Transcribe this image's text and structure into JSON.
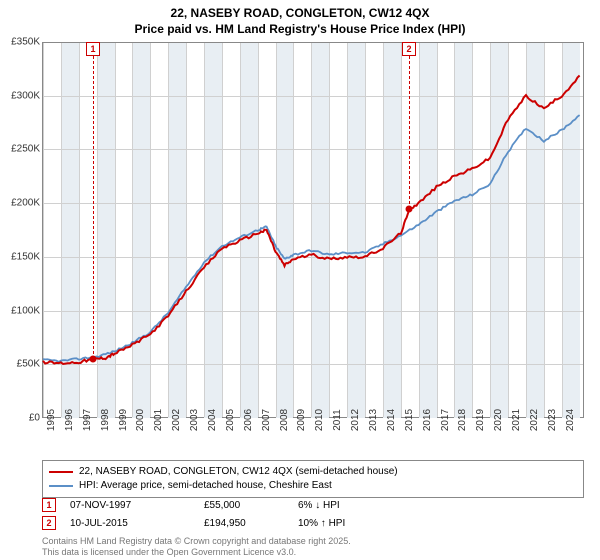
{
  "title_line1": "22, NASEBY ROAD, CONGLETON, CW12 4QX",
  "title_line2": "Price paid vs. HM Land Registry's House Price Index (HPI)",
  "chart": {
    "type": "line",
    "background_color": "#ffffff",
    "shade_color": "#e8eef3",
    "grid_color": "#d0d0d0",
    "border_color": "#888888",
    "ylim": [
      0,
      350000
    ],
    "ytick_step": 50000,
    "ytick_labels": [
      "£0",
      "£50K",
      "£100K",
      "£150K",
      "£200K",
      "£250K",
      "£300K",
      "£350K"
    ],
    "x_years": [
      1995,
      1996,
      1997,
      1998,
      1999,
      2000,
      2001,
      2002,
      2003,
      2004,
      2005,
      2006,
      2007,
      2008,
      2009,
      2010,
      2011,
      2012,
      2013,
      2014,
      2015,
      2016,
      2017,
      2018,
      2019,
      2020,
      2021,
      2022,
      2023,
      2024
    ],
    "series": [
      {
        "name": "price_paid",
        "label": "22, NASEBY ROAD, CONGLETON, CW12 4QX (semi-detached house)",
        "color": "#cc0000",
        "line_width": 2,
        "x": [
          1995,
          1996,
          1997,
          1997.85,
          1998.5,
          1999,
          2000,
          2001,
          2002,
          2003,
          2004,
          2005,
          2006,
          2007,
          2007.5,
          2008,
          2008.5,
          2009,
          2010,
          2011,
          2012,
          2013,
          2014,
          2015,
          2015.52,
          2016,
          2017,
          2018,
          2019,
          2020,
          2021,
          2022,
          2023,
          2024,
          2025
        ],
        "y": [
          52000,
          51000,
          52000,
          55000,
          56000,
          60000,
          68000,
          78000,
          95000,
          118000,
          140000,
          158000,
          165000,
          172000,
          175000,
          155000,
          142000,
          148000,
          152000,
          148000,
          150000,
          150000,
          158000,
          172000,
          194950,
          200000,
          215000,
          225000,
          232000,
          242000,
          278000,
          300000,
          288000,
          300000,
          318000
        ]
      },
      {
        "name": "hpi",
        "label": "HPI: Average price, semi-detached house, Cheshire East",
        "color": "#5b8fc7",
        "line_width": 1.8,
        "x": [
          1995,
          1996,
          1997,
          1998,
          1999,
          2000,
          2001,
          2002,
          2003,
          2004,
          2005,
          2006,
          2007,
          2007.5,
          2008,
          2008.5,
          2009,
          2010,
          2011,
          2012,
          2013,
          2014,
          2015,
          2016,
          2017,
          2018,
          2019,
          2020,
          2021,
          2022,
          2023,
          2024,
          2025
        ],
        "y": [
          54000,
          53000,
          55000,
          57000,
          62000,
          70000,
          80000,
          98000,
          122000,
          145000,
          160000,
          168000,
          175000,
          178000,
          160000,
          148000,
          152000,
          156000,
          152000,
          154000,
          154000,
          162000,
          170000,
          180000,
          192000,
          202000,
          208000,
          218000,
          248000,
          270000,
          258000,
          268000,
          282000
        ]
      }
    ],
    "markers": [
      {
        "id": "1",
        "x": 1997.85,
        "y": 55000,
        "date": "07-NOV-1997",
        "price": "£55,000",
        "pct": "6% ↓ HPI"
      },
      {
        "id": "2",
        "x": 2015.52,
        "y": 194950,
        "date": "10-JUL-2015",
        "price": "£194,950",
        "pct": "10% ↑ HPI"
      }
    ]
  },
  "footer_line1": "Contains HM Land Registry data © Crown copyright and database right 2025.",
  "footer_line2": "This data is licensed under the Open Government Licence v3.0."
}
